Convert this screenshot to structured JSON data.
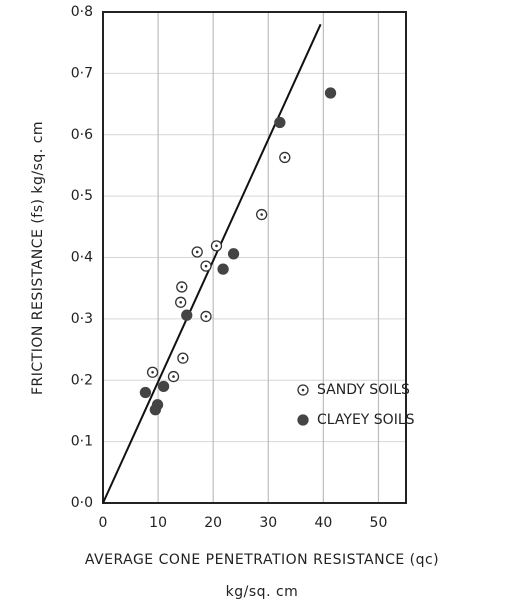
{
  "chart_data": {
    "type": "scatter",
    "xlabel": "AVERAGE CONE PENETRATION RESISTANCE (qc)",
    "xlabel_unit": "kg/sq. cm",
    "ylabel": "FRICTION RESISTANCE (fs) kg/sq. cm",
    "xlim": [
      0,
      55
    ],
    "xticks": [
      0,
      10,
      20,
      30,
      40,
      50
    ],
    "ylim": [
      0,
      0.8
    ],
    "yticks": [
      {
        "value": 0,
        "label": "0·0"
      },
      {
        "value": 0.1,
        "label": "0·1"
      },
      {
        "value": 0.2,
        "label": "0·2"
      },
      {
        "value": 0.3,
        "label": "0·3"
      },
      {
        "value": 0.4,
        "label": "0·4"
      },
      {
        "value": 0.5,
        "label": "0·5"
      },
      {
        "value": 0.6,
        "label": "0·6"
      },
      {
        "value": 0.7,
        "label": "0·7"
      },
      {
        "value": 0.8,
        "label": "0·8"
      }
    ],
    "grid": true,
    "legend": "lower right",
    "series": [
      {
        "name": "SANDY SOILS",
        "marker": "open",
        "color": "#333333",
        "x": [
          9.0,
          12.8,
          14.5,
          14.3,
          14.1,
          17.1,
          20.6,
          18.7,
          18.7,
          28.8,
          33.0
        ],
        "values": [
          0.213,
          0.206,
          0.236,
          0.352,
          0.327,
          0.409,
          0.419,
          0.386,
          0.304,
          0.47,
          0.563
        ]
      },
      {
        "name": "CLAYEY SOILS",
        "marker": "filled",
        "color": "#444444",
        "x": [
          7.7,
          9.9,
          9.5,
          11.0,
          15.2,
          21.8,
          23.7,
          32.1,
          41.3
        ],
        "values": [
          0.18,
          0.16,
          0.152,
          0.19,
          0.306,
          0.381,
          0.406,
          0.62,
          0.668
        ]
      }
    ],
    "trend_line": {
      "color": "#111111",
      "x": [
        0,
        39.5
      ],
      "values": [
        0,
        0.78
      ]
    }
  }
}
